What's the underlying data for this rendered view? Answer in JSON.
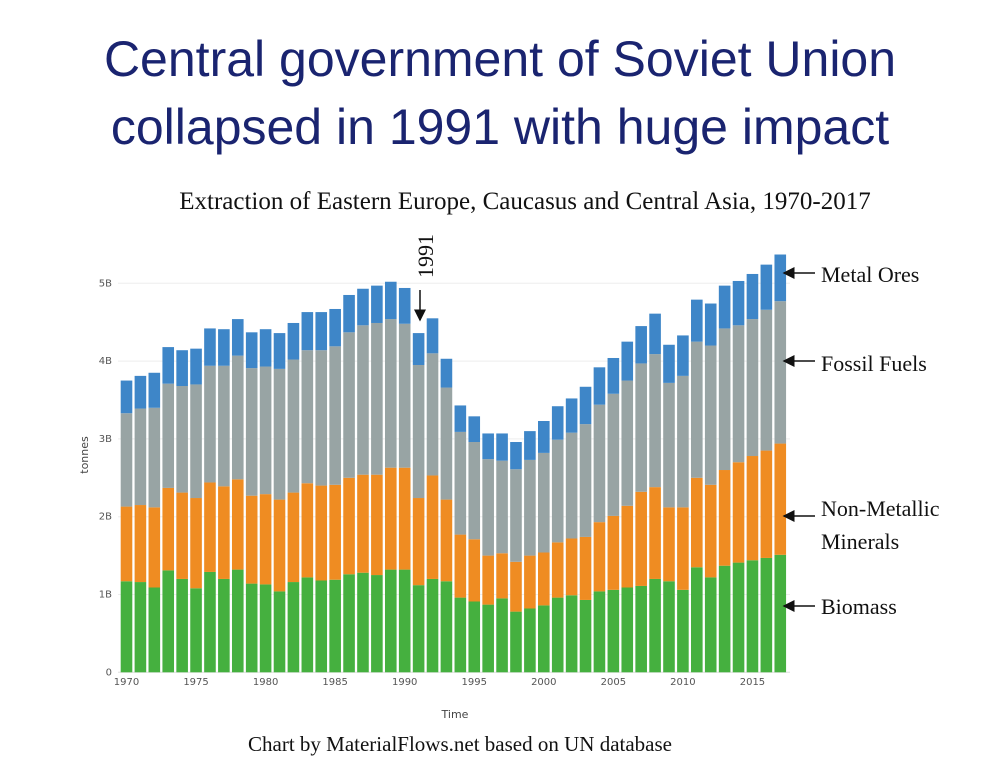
{
  "title_line1": "Central government of Soviet Union",
  "title_line2": "collapsed in 1991 with huge impact",
  "footer": "Chart by MaterialFlows.net based on UN database",
  "chart_data": {
    "type": "bar",
    "stacked": true,
    "title": "Extraction of Eastern Europe, Caucasus and Central Asia, 1970-2017",
    "xlabel": "Time",
    "ylabel": "tonnes",
    "ylim": [
      0,
      5.4
    ],
    "yticks": [
      0,
      1,
      2,
      3,
      4,
      5
    ],
    "ytick_labels": [
      "0",
      "1B",
      "2B",
      "3B",
      "4B",
      "5B"
    ],
    "xticks": [
      1970,
      1975,
      1980,
      1985,
      1990,
      1995,
      2000,
      2005,
      2010,
      2015
    ],
    "xtick_labels": [
      "1970",
      "1975",
      "1980",
      "1985",
      "1990",
      "1995",
      "2000",
      "2005",
      "2010",
      "2015"
    ],
    "grid": true,
    "years_start": 1970,
    "years_end": 2017,
    "unit": "billion tonnes",
    "series": [
      {
        "name": "Biomass",
        "label": "Biomass",
        "color": "#45b03f",
        "values": [
          1.17,
          1.16,
          1.09,
          1.31,
          1.2,
          1.08,
          1.29,
          1.2,
          1.32,
          1.14,
          1.13,
          1.04,
          1.16,
          1.22,
          1.18,
          1.19,
          1.26,
          1.28,
          1.25,
          1.32,
          1.32,
          1.12,
          1.2,
          1.17,
          0.96,
          0.91,
          0.87,
          0.95,
          0.78,
          0.82,
          0.86,
          0.96,
          0.99,
          0.93,
          1.04,
          1.06,
          1.09,
          1.11,
          1.2,
          1.17,
          1.06,
          1.35,
          1.22,
          1.37,
          1.41,
          1.44,
          1.47,
          1.51
        ]
      },
      {
        "name": "Non-Metallic Minerals",
        "label_line1": "Non-Metallic",
        "label_line2": "Minerals",
        "color": "#ef8c22",
        "values": [
          0.96,
          0.99,
          1.03,
          1.06,
          1.11,
          1.16,
          1.15,
          1.19,
          1.16,
          1.13,
          1.16,
          1.18,
          1.15,
          1.21,
          1.22,
          1.22,
          1.24,
          1.26,
          1.29,
          1.31,
          1.31,
          1.12,
          1.33,
          1.05,
          0.81,
          0.8,
          0.63,
          0.58,
          0.64,
          0.68,
          0.68,
          0.71,
          0.73,
          0.81,
          0.89,
          0.95,
          1.05,
          1.21,
          1.18,
          0.95,
          1.06,
          1.15,
          1.19,
          1.23,
          1.29,
          1.34,
          1.38,
          1.43
        ]
      },
      {
        "name": "Fossil Fuels",
        "label": "Fossil Fuels",
        "color": "#98a4a4",
        "values": [
          1.2,
          1.24,
          1.28,
          1.34,
          1.37,
          1.46,
          1.5,
          1.55,
          1.59,
          1.64,
          1.64,
          1.68,
          1.71,
          1.71,
          1.74,
          1.78,
          1.87,
          1.92,
          1.95,
          1.91,
          1.85,
          1.71,
          1.57,
          1.44,
          1.32,
          1.25,
          1.24,
          1.19,
          1.19,
          1.23,
          1.28,
          1.32,
          1.36,
          1.45,
          1.51,
          1.57,
          1.61,
          1.65,
          1.71,
          1.6,
          1.69,
          1.75,
          1.79,
          1.82,
          1.76,
          1.76,
          1.81,
          1.83
        ]
      },
      {
        "name": "Metal Ores",
        "label": "Metal Ores",
        "color": "#3e86c8",
        "values": [
          0.42,
          0.42,
          0.45,
          0.47,
          0.46,
          0.46,
          0.48,
          0.47,
          0.47,
          0.46,
          0.48,
          0.46,
          0.47,
          0.49,
          0.49,
          0.48,
          0.48,
          0.47,
          0.48,
          0.48,
          0.46,
          0.41,
          0.45,
          0.37,
          0.34,
          0.33,
          0.33,
          0.35,
          0.35,
          0.37,
          0.41,
          0.43,
          0.44,
          0.48,
          0.48,
          0.46,
          0.5,
          0.48,
          0.52,
          0.49,
          0.52,
          0.54,
          0.54,
          0.55,
          0.57,
          0.58,
          0.58,
          0.6
        ]
      }
    ],
    "annotations": [
      {
        "text": "1991",
        "year": 1991
      }
    ]
  }
}
